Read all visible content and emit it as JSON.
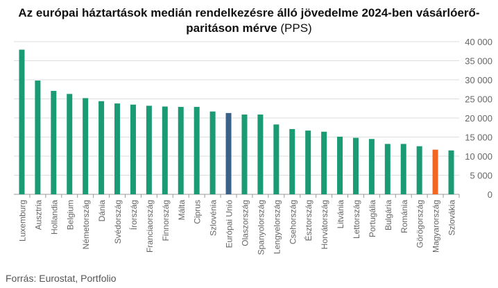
{
  "chart_data": {
    "type": "bar",
    "title": "Az európai háztartások medián rendelkezésre álló jövedelme 2024-ben vásárlóerő-paritáson mérve",
    "title_suffix": "(PPS)",
    "xlabel": "",
    "ylabel": "",
    "ylim": [
      0,
      40000
    ],
    "yticks": [
      "0",
      "5 000",
      "10 000",
      "15 000",
      "20 000",
      "25 000",
      "30 000",
      "35 000",
      "40 000"
    ],
    "y_axis_position": "right",
    "grid": true,
    "categories": [
      "Luxemburg",
      "Ausztria",
      "Hollandia",
      "Belgium",
      "Németország",
      "Dánia",
      "Svédország",
      "Írország",
      "Franciaország",
      "Finnország",
      "Málta",
      "Ciprus",
      "Szlovénia",
      "Európai Unió",
      "Olaszország",
      "Spanyolország",
      "Lengyelország",
      "Csehország",
      "Észtország",
      "Horvátország",
      "Litvánia",
      "Lettország",
      "Portugália",
      "Bulgária",
      "Románia",
      "Görögország",
      "Magyarország",
      "Szlovákia"
    ],
    "values": [
      37900,
      29800,
      27100,
      26300,
      25200,
      24400,
      23800,
      23500,
      23200,
      23000,
      22900,
      22900,
      21700,
      21300,
      20900,
      20900,
      18300,
      17100,
      16700,
      16400,
      15100,
      14800,
      14500,
      13200,
      13200,
      12600,
      11700,
      11500
    ],
    "colors": {
      "default": "#1a9b73",
      "eu": "#3c6189",
      "highlight": "#f26522",
      "grid": "#dddddd",
      "axis": "#999999",
      "label": "#666666"
    },
    "highlights": {
      "Európai Unió": "eu",
      "Magyarország": "highlight"
    }
  },
  "source": "Forrás: Eurostat, Portfolio"
}
